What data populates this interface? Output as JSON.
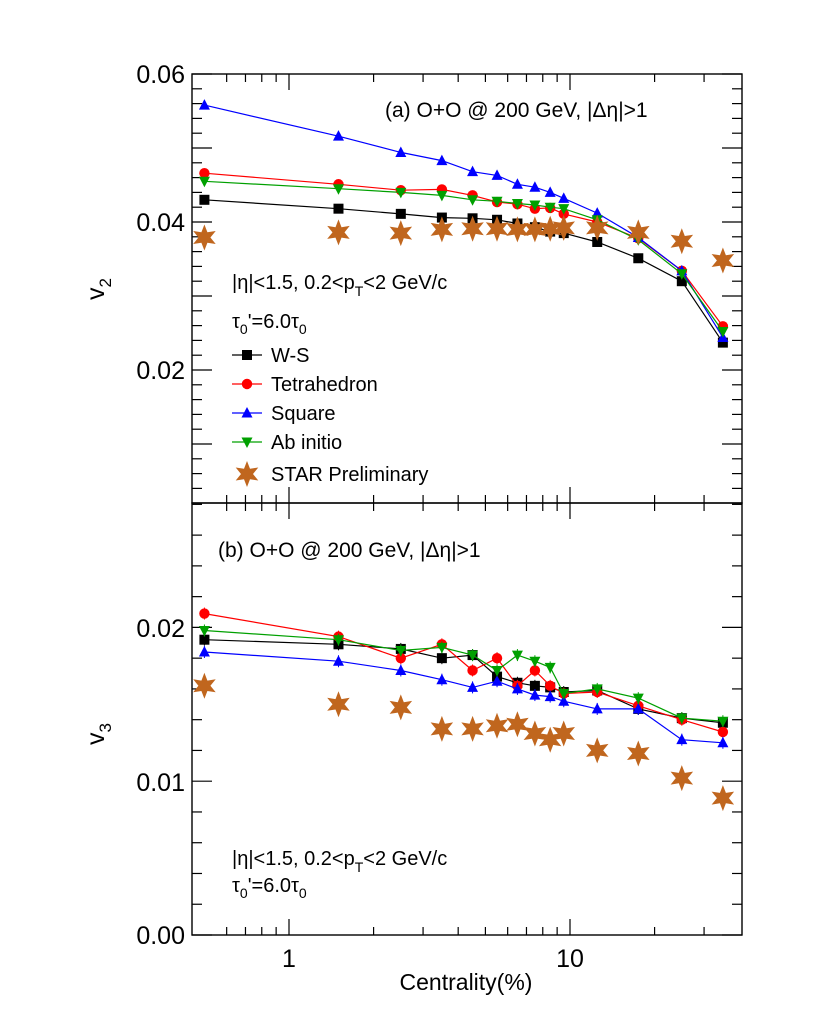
{
  "chart_data": [
    {
      "type": "line",
      "panel_label": "(a) O+O @ 200 GeV, |Δη|>1",
      "ylabel": "v",
      "ylabel_sub": "2",
      "xscale": "log",
      "xlim": [
        0.5,
        40
      ],
      "ylim": [
        0.0,
        0.06
      ],
      "y_ticks": [
        "0.06",
        "0.04",
        "0.02"
      ],
      "notes": {
        "cut_prefix": "|η|<1.5, 0.2<p",
        "cut_sub": "T",
        "cut_suffix": "<2 GeV/c",
        "tau_prefix": "τ",
        "tau_sub1": "0",
        "tau_mid": "'=6.0τ",
        "tau_sub2": "0"
      },
      "legend_position": "left-middle",
      "series": [
        {
          "name": "W-S",
          "color": "#000000",
          "marker": "square",
          "line": true,
          "x": [
            0.5,
            1.5,
            2.5,
            3.5,
            4.5,
            5.5,
            6.5,
            7.5,
            8.5,
            9.5,
            12.5,
            17.5,
            25,
            35
          ],
          "y": [
            0.043,
            0.0418,
            0.0411,
            0.0406,
            0.0405,
            0.0403,
            0.0398,
            0.0393,
            0.0387,
            0.0385,
            0.0373,
            0.0351,
            0.032,
            0.0237
          ]
        },
        {
          "name": "Tetrahedron",
          "color": "#ff0000",
          "marker": "circle",
          "line": true,
          "x": [
            0.5,
            1.5,
            2.5,
            3.5,
            4.5,
            5.5,
            6.5,
            7.5,
            8.5,
            9.5,
            12.5,
            17.5,
            25,
            35
          ],
          "y": [
            0.0466,
            0.0451,
            0.0443,
            0.0444,
            0.0436,
            0.0427,
            0.0424,
            0.0418,
            0.0419,
            0.0411,
            0.04,
            0.0378,
            0.0334,
            0.0259
          ]
        },
        {
          "name": "Square",
          "color": "#0000ff",
          "marker": "triangle-up",
          "line": true,
          "x": [
            0.5,
            1.5,
            2.5,
            3.5,
            4.5,
            5.5,
            6.5,
            7.5,
            8.5,
            9.5,
            12.5,
            17.5,
            25,
            35
          ],
          "y": [
            0.0558,
            0.0516,
            0.0494,
            0.0483,
            0.0468,
            0.0463,
            0.0451,
            0.0447,
            0.044,
            0.0432,
            0.0412,
            0.0379,
            0.0334,
            0.0244
          ]
        },
        {
          "name": "Ab initio",
          "color": "#00a000",
          "marker": "triangle-down",
          "line": true,
          "x": [
            0.5,
            1.5,
            2.5,
            3.5,
            4.5,
            5.5,
            6.5,
            7.5,
            8.5,
            9.5,
            12.5,
            17.5,
            25,
            35
          ],
          "y": [
            0.0455,
            0.0445,
            0.044,
            0.0436,
            0.043,
            0.0428,
            0.0425,
            0.0423,
            0.042,
            0.0418,
            0.0403,
            0.0376,
            0.033,
            0.0252
          ]
        },
        {
          "name": "STAR Preliminary",
          "color": "#c0661e",
          "marker": "star",
          "line": false,
          "x": [
            0.5,
            1.5,
            2.5,
            3.5,
            4.5,
            5.5,
            6.5,
            7.5,
            8.5,
            9.5,
            12.5,
            17.5,
            25,
            35
          ],
          "y": [
            0.0379,
            0.0386,
            0.0385,
            0.039,
            0.0391,
            0.0391,
            0.039,
            0.039,
            0.0391,
            0.0392,
            0.0392,
            0.0386,
            0.0374,
            0.0348
          ]
        }
      ]
    },
    {
      "type": "line",
      "panel_label": "(b) O+O @ 200 GeV, |Δη|>1",
      "ylabel": "v",
      "ylabel_sub": "3",
      "xscale": "log",
      "xlim": [
        0.5,
        40
      ],
      "ylim": [
        0.0,
        0.028
      ],
      "xlabel": "Centrality(%)",
      "x_ticks": [
        "1",
        "10"
      ],
      "y_ticks": [
        "0.02",
        "0.01",
        "0.00"
      ],
      "notes": {
        "cut_prefix": "|η|<1.5, 0.2<p",
        "cut_sub": "T",
        "cut_suffix": "<2 GeV/c",
        "tau_prefix": "τ",
        "tau_sub1": "0",
        "tau_mid": "'=6.0τ",
        "tau_sub2": "0"
      },
      "series": [
        {
          "name": "W-S",
          "color": "#000000",
          "marker": "square",
          "line": true,
          "x": [
            0.5,
            1.5,
            2.5,
            3.5,
            4.5,
            5.5,
            6.5,
            7.5,
            8.5,
            9.5,
            12.5,
            17.5,
            25,
            35
          ],
          "y": [
            0.0192,
            0.0189,
            0.0186,
            0.018,
            0.0182,
            0.0168,
            0.0164,
            0.0162,
            0.0161,
            0.0158,
            0.0159,
            0.0147,
            0.0141,
            0.0138
          ]
        },
        {
          "name": "Tetrahedron",
          "color": "#ff0000",
          "marker": "circle",
          "line": true,
          "x": [
            0.5,
            1.5,
            2.5,
            3.5,
            4.5,
            5.5,
            6.5,
            7.5,
            8.5,
            9.5,
            12.5,
            17.5,
            25,
            35
          ],
          "y": [
            0.0209,
            0.0194,
            0.018,
            0.0189,
            0.0172,
            0.018,
            0.0162,
            0.0172,
            0.0162,
            0.0157,
            0.0158,
            0.0149,
            0.014,
            0.0132
          ]
        },
        {
          "name": "Square",
          "color": "#0000ff",
          "marker": "triangle-up",
          "line": true,
          "x": [
            0.5,
            1.5,
            2.5,
            3.5,
            4.5,
            5.5,
            6.5,
            7.5,
            8.5,
            9.5,
            12.5,
            17.5,
            25,
            35
          ],
          "y": [
            0.0184,
            0.0178,
            0.0172,
            0.0166,
            0.0161,
            0.0165,
            0.016,
            0.0156,
            0.0155,
            0.0152,
            0.0147,
            0.0147,
            0.0127,
            0.0125
          ]
        },
        {
          "name": "Ab initio",
          "color": "#00a000",
          "marker": "triangle-down",
          "line": true,
          "x": [
            0.5,
            1.5,
            2.5,
            3.5,
            4.5,
            5.5,
            6.5,
            7.5,
            8.5,
            9.5,
            12.5,
            17.5,
            25,
            35
          ],
          "y": [
            0.0198,
            0.0192,
            0.0185,
            0.0187,
            0.0182,
            0.0172,
            0.0182,
            0.0178,
            0.0174,
            0.0157,
            0.016,
            0.0154,
            0.0141,
            0.0139
          ]
        },
        {
          "name": "STAR Preliminary",
          "color": "#c0661e",
          "marker": "star",
          "line": false,
          "x": [
            0.5,
            1.5,
            2.5,
            3.5,
            4.5,
            5.5,
            6.5,
            7.5,
            8.5,
            9.5,
            12.5,
            17.5,
            25,
            35
          ],
          "y": [
            0.0162,
            0.015,
            0.0148,
            0.0134,
            0.0134,
            0.0136,
            0.0137,
            0.0131,
            0.0127,
            0.0131,
            0.012,
            0.0118,
            0.0102,
            0.0089
          ]
        }
      ]
    }
  ]
}
